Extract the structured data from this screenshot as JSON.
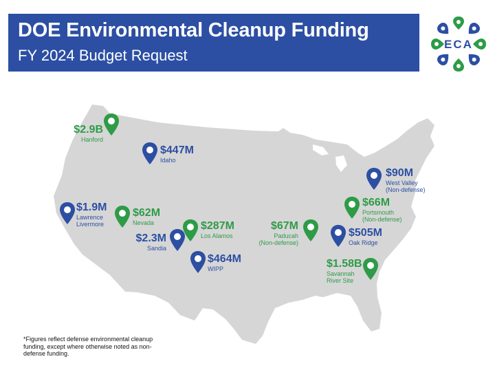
{
  "header": {
    "title": "DOE Environmental Cleanup Funding",
    "subtitle": "FY 2024 Budget Request",
    "banner_color": "#2c4fa3"
  },
  "logo": {
    "text": "ECA",
    "icon": "eca-logo"
  },
  "colors": {
    "green": "#2e9b47",
    "blue": "#2c4fa3",
    "map_fill": "#d6d6d6"
  },
  "sites": {
    "hanford": {
      "amount": "$2.9B",
      "name": "Hanford",
      "color": "green"
    },
    "idaho": {
      "amount": "$447M",
      "name": "Idaho",
      "color": "blue"
    },
    "livermore": {
      "amount": "$1.9M",
      "name_line1": "Lawrence",
      "name_line2": "Livermore",
      "color": "blue"
    },
    "nevada": {
      "amount": "$62M",
      "name": "Nevada",
      "color": "green"
    },
    "los_alamos": {
      "amount": "$287M",
      "name": "Los Alamos",
      "color": "green"
    },
    "sandia": {
      "amount": "$2.3M",
      "name": "Sandia",
      "color": "blue"
    },
    "wipp": {
      "amount": "$464M",
      "name": "WIPP",
      "color": "blue"
    },
    "paducah": {
      "amount": "$67M",
      "name_line1": "Paducah",
      "name_line2": "(Non-defense)",
      "color": "green"
    },
    "oak_ridge": {
      "amount": "$505M",
      "name": "Oak Ridge",
      "color": "blue"
    },
    "portsmouth": {
      "amount": "$66M",
      "name_line1": "Portsmouth",
      "name_line2": "(Non-defense)",
      "color": "green"
    },
    "west_valley": {
      "amount": "$90M",
      "name_line1": "West Valley",
      "name_line2": "(Non-defense)",
      "color": "blue"
    },
    "savannah_river": {
      "amount": "$1.58B",
      "name_line1": "Savannah",
      "name_line2": "River Site",
      "color": "green"
    }
  },
  "footnote": "*Figures reflect defense environmental cleanup funding, except where otherwise noted as non-defense funding."
}
